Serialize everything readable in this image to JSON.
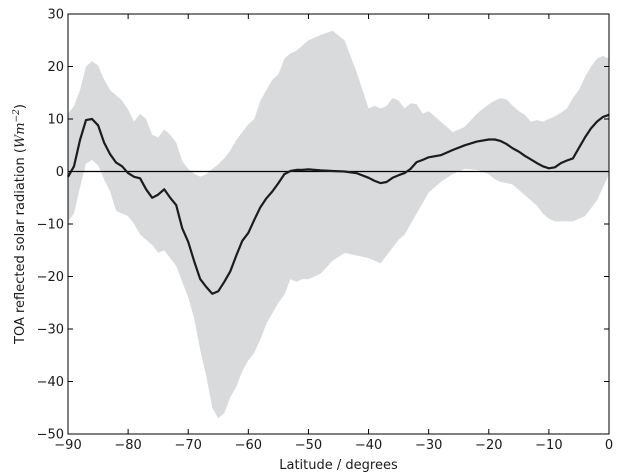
{
  "chart_data": {
    "type": "line",
    "xlabel": "Latitude / degrees",
    "ylabel_text": "TOA reflected solar radiation (",
    "ylabel_unit": "Wm",
    "ylabel_exp": "−2",
    "ylabel_close": ")",
    "xlim": [
      -90,
      0
    ],
    "ylim": [
      -50,
      30
    ],
    "x_ticks": [
      -90,
      -80,
      -70,
      -60,
      -50,
      -40,
      -30,
      -20,
      -10,
      0
    ],
    "x_tick_labels": [
      "−90",
      "−80",
      "−70",
      "−60",
      "−50",
      "−40",
      "−30",
      "−20",
      "−10",
      "0"
    ],
    "y_ticks": [
      -50,
      -40,
      -30,
      -20,
      -10,
      0,
      10,
      20,
      30
    ],
    "y_tick_labels": [
      "−50",
      "−40",
      "−30",
      "−20",
      "−10",
      "0",
      "10",
      "20",
      "30"
    ],
    "zero_line": true,
    "grid": false,
    "colors": {
      "band": "#d9dadb",
      "line": "#1c1c1c",
      "zero": "#000000"
    },
    "series": [
      {
        "x": [
          -90,
          -89,
          -88,
          -87,
          -86,
          -85,
          -84,
          -83,
          -82,
          -81,
          -80,
          -79,
          -78,
          -77,
          -76,
          -75,
          -74,
          -73,
          -72,
          -71,
          -70,
          -69,
          -68,
          -67,
          -66,
          -65,
          -64,
          -63,
          -62,
          -61,
          -60,
          -59,
          -58,
          -57,
          -56,
          -55,
          -54,
          -53,
          -52,
          -51,
          -50,
          -48,
          -46,
          -44,
          -42,
          -40,
          -39,
          -38,
          -37,
          -36,
          -35,
          -34,
          -33,
          -32,
          -31,
          -30,
          -28,
          -26,
          -24,
          -22,
          -20,
          -19,
          -18,
          -17,
          -16,
          -15,
          -14,
          -13,
          -12,
          -11,
          -10,
          -9,
          -8,
          -7,
          -6,
          -5,
          -4,
          -3,
          -2,
          -1,
          0
        ],
        "y": [
          -1,
          1,
          6,
          9.8,
          10,
          8.8,
          5.5,
          3.3,
          1.7,
          1,
          -0.3,
          -1,
          -1.3,
          -3.4,
          -5,
          -4.4,
          -3.4,
          -5,
          -6.4,
          -10.8,
          -13.4,
          -17.1,
          -20.5,
          -22,
          -23.3,
          -22.8,
          -21,
          -19,
          -16,
          -13.2,
          -11.7,
          -9.2,
          -6.8,
          -5.1,
          -3.8,
          -2.2,
          -0.5,
          0.1,
          0.3,
          0.3,
          0.4,
          0.2,
          0.1,
          0,
          -0.3,
          -1.2,
          -1.8,
          -2.2,
          -2,
          -1.2,
          -0.7,
          -0.3,
          0.5,
          1.8,
          2.2,
          2.7,
          3.1,
          4.1,
          5,
          5.7,
          6.1,
          6.1,
          5.8,
          5.2,
          4.4,
          3.8,
          3,
          2.3,
          1.6,
          1,
          0.6,
          0.8,
          1.6,
          2.1,
          2.5,
          4.5,
          6.5,
          8.2,
          9.5,
          10.4,
          10.8
        ]
      }
    ],
    "band": {
      "x": [
        -90,
        -89,
        -88,
        -87,
        -86,
        -85,
        -84,
        -83,
        -82,
        -81,
        -80,
        -79,
        -78,
        -77,
        -76,
        -75,
        -74,
        -73,
        -72,
        -71,
        -70,
        -69,
        -68,
        -67,
        -66,
        -65,
        -64,
        -63,
        -62,
        -61,
        -60,
        -59,
        -58,
        -57,
        -56,
        -55,
        -54,
        -53,
        -52,
        -51,
        -50,
        -48,
        -46,
        -44,
        -42,
        -40,
        -39,
        -38,
        -37,
        -36,
        -35,
        -34,
        -33,
        -32,
        -31,
        -30,
        -28,
        -26,
        -24,
        -22,
        -20,
        -19,
        -18,
        -17,
        -16,
        -15,
        -14,
        -13,
        -12,
        -11,
        -10,
        -9,
        -8,
        -7,
        -6,
        -5,
        -4,
        -3,
        -2,
        -1,
        0
      ],
      "upper": [
        11,
        12.5,
        15.5,
        20,
        21,
        20.2,
        17.5,
        15.5,
        14.5,
        13.5,
        11.8,
        9.5,
        11,
        10,
        7,
        6.5,
        8,
        7,
        5.5,
        2,
        0.5,
        -0.4,
        -1,
        -0.5,
        0.5,
        1.4,
        2.5,
        4,
        6,
        7.5,
        9,
        10,
        13.5,
        15.5,
        17.5,
        18.5,
        21.5,
        22.5,
        23,
        24,
        25,
        26,
        26.8,
        25,
        19,
        12,
        12.5,
        12,
        12.5,
        14,
        13.5,
        12,
        13,
        12.8,
        11,
        11.5,
        9.5,
        7.5,
        8.5,
        11,
        12.8,
        13.5,
        14,
        13.7,
        12.5,
        11.5,
        10.8,
        9.5,
        9.8,
        9.5,
        10,
        10.5,
        11.2,
        12,
        14,
        15.5,
        18,
        20,
        21.5,
        22,
        21.5
      ],
      "lower": [
        -9.5,
        -8,
        -3,
        1.5,
        2.2,
        1.2,
        -1.5,
        -3.8,
        -7.5,
        -8,
        -8.5,
        -10,
        -12,
        -13,
        -14,
        -15.5,
        -15,
        -16.5,
        -18,
        -21,
        -24,
        -28,
        -34,
        -39,
        -45,
        -47,
        -46,
        -43,
        -41,
        -38,
        -36,
        -34.5,
        -32,
        -29,
        -27,
        -25,
        -23.5,
        -20.5,
        -21,
        -20.5,
        -20.5,
        -19.5,
        -17,
        -15.5,
        -16,
        -16.5,
        -17,
        -17.5,
        -16,
        -14.5,
        -13,
        -12,
        -10,
        -8,
        -6,
        -4,
        -2,
        -0.5,
        0.5,
        0.3,
        -0.5,
        -1.5,
        -2,
        -2.2,
        -2.5,
        -3.5,
        -4.5,
        -5.5,
        -6.5,
        -8,
        -9,
        -9.5,
        -9.5,
        -9.5,
        -9.5,
        -9,
        -8.5,
        -7,
        -5.5,
        -3,
        -0.5
      ]
    }
  }
}
